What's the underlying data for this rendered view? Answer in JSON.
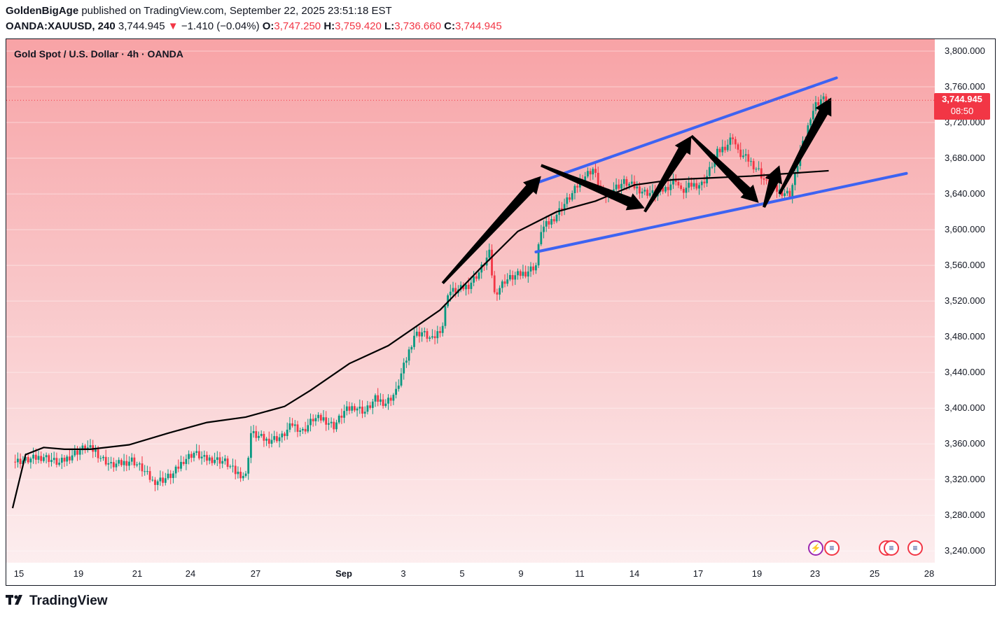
{
  "header": {
    "author": "GoldenBigAge",
    "published_text": " published on TradingView.com, September 22, 2025 23:51:18 EST",
    "symbol": "OANDA:XAUUSD, 240",
    "last_price": "3,744.945",
    "change_arrow": "▼",
    "change": "−1.410 (−0.04%)",
    "o_label": "O:",
    "o_value": "3,747.250",
    "h_label": "H:",
    "h_value": "3,759.420",
    "l_label": "L:",
    "l_value": "3,736.660",
    "c_label": "C:",
    "c_value": "3,744.945"
  },
  "legend": {
    "title": "Gold Spot / U.S. Dollar · 4h · OANDA"
  },
  "price_tag": {
    "price": "3,744.945",
    "countdown": "08:50"
  },
  "footer": {
    "brand": "TradingView"
  },
  "colors": {
    "up": "#089981",
    "down": "#f23645",
    "channel": "#3d63f2",
    "ma": "#000000",
    "arrows": "#000000"
  },
  "icons": [
    "lightning-event-icon",
    "us-flag-event-icon",
    "us-flag-event-icon",
    "us-flag-event-icon",
    "us-flag-event-icon"
  ],
  "chart_data": {
    "type": "candlestick",
    "title": "Gold Spot / U.S. Dollar · 4h · OANDA",
    "ylim": [
      3220,
      3810
    ],
    "y_ticks": [
      3240,
      3280,
      3320,
      3360,
      3400,
      3440,
      3480,
      3520,
      3560,
      3600,
      3640,
      3680,
      3720,
      3760,
      3800
    ],
    "y_tick_labels": [
      "3,240.000",
      "3,280.000",
      "3,320.000",
      "3,360.000",
      "3,400.000",
      "3,440.000",
      "3,480.000",
      "3,520.000",
      "3,560.000",
      "3,600.000",
      "3,640.000",
      "3,680.000",
      "3,720.000",
      "3,760.000",
      "3,800.000"
    ],
    "x_tick_labels": [
      "15",
      "19",
      "21",
      "24",
      "27",
      "Sep",
      "3",
      "5",
      "9",
      "11",
      "14",
      "17",
      "19",
      "23",
      "25",
      "28"
    ],
    "candle_close_path": [
      [
        0,
        3340
      ],
      [
        6,
        3342
      ],
      [
        12,
        3346
      ],
      [
        18,
        3338
      ],
      [
        24,
        3350
      ],
      [
        28,
        3356
      ],
      [
        32,
        3352
      ],
      [
        34,
        3345
      ],
      [
        38,
        3336
      ],
      [
        42,
        3338
      ],
      [
        46,
        3342
      ],
      [
        50,
        3332
      ],
      [
        54,
        3318
      ],
      [
        58,
        3320
      ],
      [
        62,
        3326
      ],
      [
        66,
        3342
      ],
      [
        70,
        3350
      ],
      [
        74,
        3343
      ],
      [
        78,
        3343
      ],
      [
        82,
        3340
      ],
      [
        86,
        3328
      ],
      [
        90,
        3324
      ],
      [
        92,
        3372
      ],
      [
        98,
        3364
      ],
      [
        104,
        3368
      ],
      [
        108,
        3382
      ],
      [
        112,
        3374
      ],
      [
        116,
        3388
      ],
      [
        120,
        3388
      ],
      [
        124,
        3380
      ],
      [
        128,
        3396
      ],
      [
        132,
        3402
      ],
      [
        136,
        3396
      ],
      [
        140,
        3410
      ],
      [
        144,
        3406
      ],
      [
        148,
        3418
      ],
      [
        150,
        3438
      ],
      [
        152,
        3455
      ],
      [
        155,
        3482
      ],
      [
        158,
        3485
      ],
      [
        162,
        3476
      ],
      [
        166,
        3493
      ],
      [
        168,
        3530
      ],
      [
        172,
        3532
      ],
      [
        176,
        3538
      ],
      [
        180,
        3552
      ],
      [
        184,
        3573
      ],
      [
        186,
        3528
      ],
      [
        190,
        3543
      ],
      [
        194,
        3548
      ],
      [
        198,
        3552
      ],
      [
        202,
        3560
      ],
      [
        204,
        3600
      ],
      [
        208,
        3610
      ],
      [
        212,
        3625
      ],
      [
        216,
        3640
      ],
      [
        220,
        3658
      ],
      [
        224,
        3668
      ],
      [
        226,
        3652
      ],
      [
        228,
        3636
      ],
      [
        232,
        3646
      ],
      [
        236,
        3653
      ],
      [
        240,
        3648
      ],
      [
        244,
        3642
      ],
      [
        248,
        3640
      ],
      [
        252,
        3646
      ],
      [
        256,
        3657
      ],
      [
        258,
        3642
      ],
      [
        262,
        3650
      ],
      [
        266,
        3651
      ],
      [
        268,
        3660
      ],
      [
        272,
        3686
      ],
      [
        276,
        3696
      ],
      [
        278,
        3705
      ],
      [
        280,
        3686
      ],
      [
        284,
        3678
      ],
      [
        288,
        3666
      ],
      [
        290,
        3656
      ],
      [
        292,
        3648
      ],
      [
        296,
        3643
      ],
      [
        300,
        3640
      ],
      [
        302,
        3660
      ],
      [
        304,
        3688
      ],
      [
        306,
        3702
      ],
      [
        308,
        3728
      ],
      [
        310,
        3740
      ],
      [
        312,
        3746
      ],
      [
        315,
        3744.945
      ]
    ],
    "moving_average_path": [
      [
        0,
        3288
      ],
      [
        5,
        3348
      ],
      [
        12,
        3356
      ],
      [
        20,
        3354
      ],
      [
        30,
        3354
      ],
      [
        45,
        3359
      ],
      [
        60,
        3372
      ],
      [
        75,
        3384
      ],
      [
        90,
        3390
      ],
      [
        105,
        3402
      ],
      [
        115,
        3420
      ],
      [
        130,
        3450
      ],
      [
        145,
        3470
      ],
      [
        165,
        3510
      ],
      [
        180,
        3555
      ],
      [
        195,
        3598
      ],
      [
        210,
        3620
      ],
      [
        225,
        3632
      ],
      [
        240,
        3650
      ],
      [
        255,
        3656
      ],
      [
        270,
        3658
      ],
      [
        285,
        3660
      ],
      [
        300,
        3663
      ],
      [
        315,
        3666
      ]
    ],
    "upper_channel": [
      [
        200,
        3650
      ],
      [
        318,
        3770
      ]
    ],
    "lower_channel": [
      [
        202,
        3575
      ],
      [
        345,
        3663
      ]
    ],
    "last_price": 3744.945
  }
}
